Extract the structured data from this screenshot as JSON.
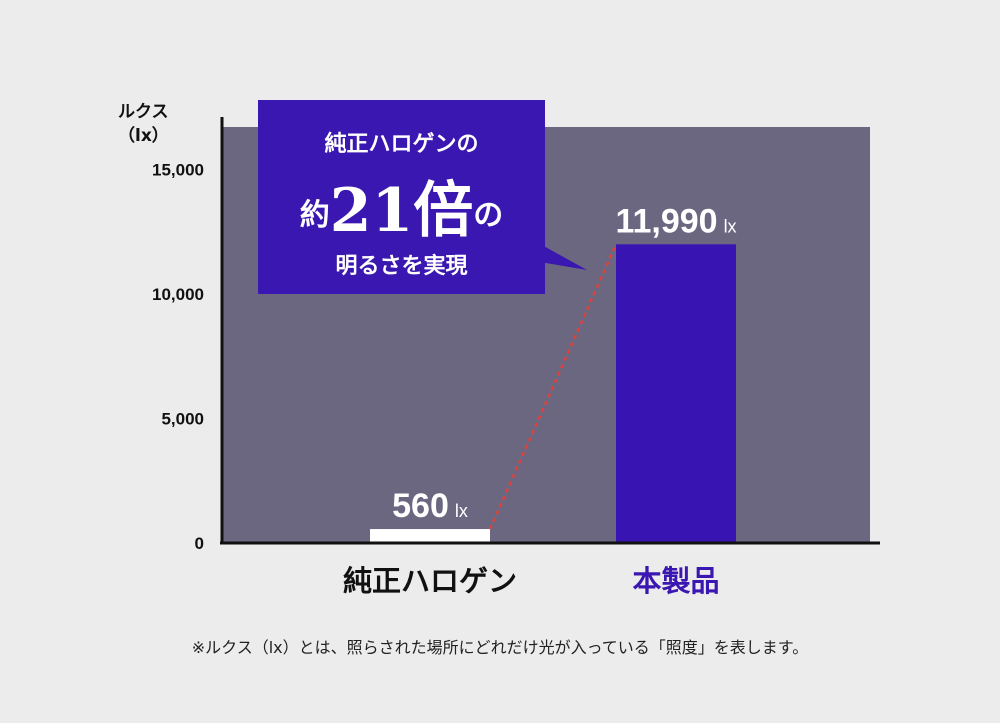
{
  "chart_data": {
    "type": "bar",
    "ylabel_line1": "ルクス",
    "ylabel_line2": "（lx）",
    "ylim": [
      0,
      16700
    ],
    "yticks": [
      {
        "value": 0,
        "label": "0"
      },
      {
        "value": 5000,
        "label": "5,000"
      },
      {
        "value": 10000,
        "label": "10,000"
      },
      {
        "value": 15000,
        "label": "15,000"
      }
    ],
    "categories": [
      "純正ハロゲン",
      "本製品"
    ],
    "values": [
      560,
      11990
    ],
    "value_labels": [
      "560",
      "11,990"
    ],
    "value_unit": "lx",
    "grid": false
  },
  "colors": {
    "background": "#ececec",
    "plot_area": "#6c6781",
    "bar_halogen": "#ffffff",
    "bar_product": "#3814b3",
    "callout": "#3a17b0",
    "connector": "#e0403a",
    "product_label": "#3a17b0"
  },
  "callout": {
    "line1": "純正ハロゲンの",
    "line2_pre": "約",
    "line2_num": "21倍",
    "line2_post": "の",
    "line3": "明るさを実現"
  },
  "footnote": "※ルクス（lx）とは、照らされた場所にどれだけ光が入っている「照度」を表します。"
}
